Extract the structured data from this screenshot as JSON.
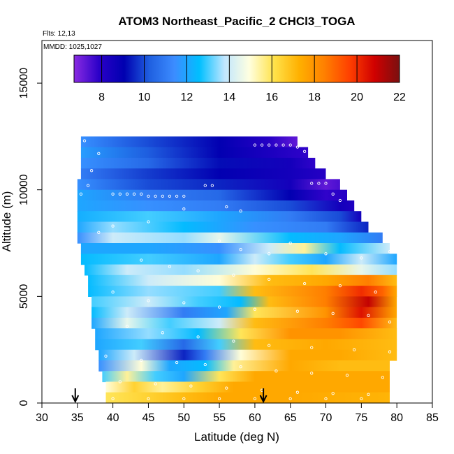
{
  "chart_data": {
    "type": "heatmap",
    "title": "ATOM3 Northeast_Pacific_2 CHCl3_TOGA",
    "notes": [
      "Flts: 12,13",
      "MMDD: 1025,1027"
    ],
    "xlabel": "Latitude (deg N)",
    "ylabel": "Altitude (m)",
    "xlim": [
      30,
      85
    ],
    "ylim": [
      0,
      17000
    ],
    "x_ticks": [
      30,
      35,
      40,
      45,
      50,
      55,
      60,
      65,
      70,
      75,
      80,
      85
    ],
    "y_ticks": [
      0,
      5000,
      10000,
      15000
    ],
    "colorbar": {
      "min": 6.7,
      "max": 22,
      "ticks": [
        8,
        10,
        12,
        14,
        16,
        18,
        20,
        22
      ],
      "colors": [
        "#8a2be2",
        "#2a00c8",
        "#0000b0",
        "#1f5fe0",
        "#3c8cff",
        "#00bfff",
        "#bfe6ff",
        "#ffffe0",
        "#ffe24a",
        "#ffb000",
        "#ff8000",
        "#ff4000",
        "#d00000",
        "#7a1010"
      ]
    },
    "arrows_at_latitude": [
      34.7,
      61.2
    ],
    "rows": [
      {
        "alt_bottom": 12000,
        "alt_top": 12500,
        "x_start": 35.5,
        "x_end": 66,
        "stops": [
          [
            35.5,
            11.5
          ],
          [
            45,
            10
          ],
          [
            55,
            9
          ],
          [
            62,
            8
          ],
          [
            66,
            7.2
          ]
        ]
      },
      {
        "alt_bottom": 11500,
        "alt_top": 12000,
        "x_start": 35.5,
        "x_end": 67.5,
        "stops": [
          [
            35.5,
            11.8
          ],
          [
            45,
            10.2
          ],
          [
            55,
            9
          ],
          [
            62,
            8.3
          ],
          [
            67.5,
            7.8
          ]
        ]
      },
      {
        "alt_bottom": 11000,
        "alt_top": 11500,
        "x_start": 35.5,
        "x_end": 68.5,
        "stops": [
          [
            35.5,
            11.5
          ],
          [
            45,
            10.5
          ],
          [
            55,
            9.2
          ],
          [
            65,
            8.5
          ],
          [
            68.5,
            7.8
          ]
        ]
      },
      {
        "alt_bottom": 10500,
        "alt_top": 11000,
        "x_start": 35.5,
        "x_end": 70,
        "stops": [
          [
            35.5,
            11
          ],
          [
            45,
            9.8
          ],
          [
            55,
            9
          ],
          [
            65,
            8.5
          ],
          [
            70,
            8
          ]
        ]
      },
      {
        "alt_bottom": 10000,
        "alt_top": 10500,
        "x_start": 35,
        "x_end": 72,
        "stops": [
          [
            35,
            11.5
          ],
          [
            45,
            10
          ],
          [
            55,
            9.5
          ],
          [
            65,
            8.5
          ],
          [
            70,
            7.2
          ],
          [
            72,
            7.5
          ]
        ]
      },
      {
        "alt_bottom": 9500,
        "alt_top": 10000,
        "x_start": 35,
        "x_end": 73,
        "stops": [
          [
            35,
            12
          ],
          [
            45,
            11
          ],
          [
            55,
            10.5
          ],
          [
            65,
            9
          ],
          [
            70,
            7.8
          ],
          [
            73,
            8
          ]
        ]
      },
      {
        "alt_bottom": 9000,
        "alt_top": 9500,
        "x_start": 35,
        "x_end": 74,
        "stops": [
          [
            35,
            12
          ],
          [
            45,
            11.5
          ],
          [
            55,
            11
          ],
          [
            65,
            10
          ],
          [
            72,
            8.5
          ],
          [
            74,
            8.2
          ]
        ]
      },
      {
        "alt_bottom": 8500,
        "alt_top": 9000,
        "x_start": 35,
        "x_end": 75,
        "stops": [
          [
            35,
            12.2
          ],
          [
            45,
            13
          ],
          [
            55,
            12
          ],
          [
            65,
            11
          ],
          [
            72,
            10
          ],
          [
            75,
            8.5
          ]
        ]
      },
      {
        "alt_bottom": 8000,
        "alt_top": 8500,
        "x_start": 35,
        "x_end": 76,
        "stops": [
          [
            35,
            12
          ],
          [
            40,
            13.5
          ],
          [
            50,
            12.5
          ],
          [
            60,
            11.5
          ],
          [
            70,
            11
          ],
          [
            76,
            9.5
          ]
        ]
      },
      {
        "alt_bottom": 7500,
        "alt_top": 8000,
        "x_start": 35,
        "x_end": 78,
        "stops": [
          [
            35,
            11.5
          ],
          [
            40,
            14
          ],
          [
            50,
            13.5
          ],
          [
            55,
            14.5
          ],
          [
            65,
            12.5
          ],
          [
            72,
            12
          ],
          [
            78,
            11
          ]
        ]
      },
      {
        "alt_bottom": 7000,
        "alt_top": 7500,
        "x_start": 35.5,
        "x_end": 79,
        "stops": [
          [
            35.5,
            12
          ],
          [
            45,
            12
          ],
          [
            55,
            11.5
          ],
          [
            62,
            14
          ],
          [
            67,
            15.5
          ],
          [
            72,
            12.5
          ],
          [
            79,
            14
          ]
        ]
      },
      {
        "alt_bottom": 6500,
        "alt_top": 7000,
        "x_start": 35.5,
        "x_end": 80,
        "stops": [
          [
            35.5,
            12.5
          ],
          [
            45,
            13
          ],
          [
            55,
            12
          ],
          [
            60,
            14
          ],
          [
            65,
            13
          ],
          [
            70,
            12
          ],
          [
            75,
            14
          ],
          [
            80,
            12
          ]
        ]
      },
      {
        "alt_bottom": 6000,
        "alt_top": 6500,
        "x_start": 36,
        "x_end": 80,
        "stops": [
          [
            36,
            12.5
          ],
          [
            42,
            14
          ],
          [
            50,
            13.5
          ],
          [
            60,
            15
          ],
          [
            68,
            16
          ],
          [
            75,
            14.5
          ],
          [
            80,
            13.5
          ]
        ]
      },
      {
        "alt_bottom": 5500,
        "alt_top": 6000,
        "x_start": 36.5,
        "x_end": 80,
        "stops": [
          [
            36.5,
            12.5
          ],
          [
            45,
            14
          ],
          [
            55,
            15
          ],
          [
            62,
            17
          ],
          [
            70,
            17.5
          ],
          [
            76,
            18.5
          ],
          [
            80,
            17
          ]
        ]
      },
      {
        "alt_bottom": 5000,
        "alt_top": 5500,
        "x_start": 36.5,
        "x_end": 80,
        "stops": [
          [
            36.5,
            12.5
          ],
          [
            45,
            13.5
          ],
          [
            55,
            13
          ],
          [
            60,
            17
          ],
          [
            70,
            18.5
          ],
          [
            75,
            20
          ],
          [
            78,
            19
          ],
          [
            80,
            17.5
          ]
        ]
      },
      {
        "alt_bottom": 4500,
        "alt_top": 5000,
        "x_start": 37,
        "x_end": 80,
        "stops": [
          [
            37,
            13
          ],
          [
            45,
            14
          ],
          [
            52,
            13
          ],
          [
            58,
            12.5
          ],
          [
            62,
            17
          ],
          [
            70,
            18.5
          ],
          [
            76,
            21
          ],
          [
            80,
            17.5
          ]
        ]
      },
      {
        "alt_bottom": 4000,
        "alt_top": 4500,
        "x_start": 37,
        "x_end": 80,
        "stops": [
          [
            37,
            12.5
          ],
          [
            42,
            14
          ],
          [
            50,
            11
          ],
          [
            56,
            12
          ],
          [
            60,
            16
          ],
          [
            70,
            18
          ],
          [
            75,
            20.5
          ],
          [
            80,
            17.5
          ]
        ]
      },
      {
        "alt_bottom": 3500,
        "alt_top": 4000,
        "x_start": 37,
        "x_end": 80,
        "stops": [
          [
            37,
            12
          ],
          [
            42,
            14.5
          ],
          [
            48,
            13
          ],
          [
            55,
            14
          ],
          [
            60,
            17
          ],
          [
            70,
            18.5
          ],
          [
            75,
            19.5
          ],
          [
            80,
            17
          ]
        ]
      },
      {
        "alt_bottom": 3000,
        "alt_top": 3500,
        "x_start": 37.5,
        "x_end": 80,
        "stops": [
          [
            37.5,
            12
          ],
          [
            45,
            13.5
          ],
          [
            52,
            12.5
          ],
          [
            58,
            16
          ],
          [
            65,
            18
          ],
          [
            72,
            18
          ],
          [
            80,
            17
          ]
        ]
      },
      {
        "alt_bottom": 2500,
        "alt_top": 3000,
        "x_start": 37.5,
        "x_end": 80,
        "stops": [
          [
            37.5,
            12
          ],
          [
            44,
            13
          ],
          [
            50,
            10.5
          ],
          [
            55,
            13
          ],
          [
            60,
            17
          ],
          [
            70,
            17.5
          ],
          [
            80,
            17
          ]
        ]
      },
      {
        "alt_bottom": 2000,
        "alt_top": 2500,
        "x_start": 38,
        "x_end": 80,
        "stops": [
          [
            38,
            12
          ],
          [
            43,
            14
          ],
          [
            50,
            9.5
          ],
          [
            53,
            11
          ],
          [
            58,
            15
          ],
          [
            65,
            17.5
          ],
          [
            72,
            17.5
          ],
          [
            80,
            17
          ]
        ]
      },
      {
        "alt_bottom": 1500,
        "alt_top": 2000,
        "x_start": 38,
        "x_end": 79,
        "stops": [
          [
            38,
            11.5
          ],
          [
            44,
            15
          ],
          [
            48,
            12
          ],
          [
            53,
            12.5
          ],
          [
            57,
            15.5
          ],
          [
            65,
            17.5
          ],
          [
            72,
            17
          ],
          [
            79,
            17
          ]
        ]
      },
      {
        "alt_bottom": 1000,
        "alt_top": 1500,
        "x_start": 38.5,
        "x_end": 79,
        "stops": [
          [
            38.5,
            13
          ],
          [
            42,
            15.5
          ],
          [
            46,
            13
          ],
          [
            50,
            12
          ],
          [
            55,
            16
          ],
          [
            60,
            17.5
          ],
          [
            70,
            17.5
          ],
          [
            79,
            17.5
          ]
        ]
      },
      {
        "alt_bottom": 500,
        "alt_top": 1000,
        "x_start": 39,
        "x_end": 79,
        "stops": [
          [
            39,
            15
          ],
          [
            43,
            16.5
          ],
          [
            47,
            15.5
          ],
          [
            52,
            16.5
          ],
          [
            57,
            17.5
          ],
          [
            65,
            17.5
          ],
          [
            72,
            17.5
          ],
          [
            79,
            17.5
          ]
        ]
      },
      {
        "alt_bottom": 0,
        "alt_top": 500,
        "x_start": 39,
        "x_end": 79,
        "stops": [
          [
            39,
            16
          ],
          [
            45,
            16.5
          ],
          [
            50,
            17
          ],
          [
            55,
            17.5
          ],
          [
            65,
            17.5
          ],
          [
            79,
            17.2
          ]
        ]
      }
    ],
    "points": [
      [
        36,
        12300
      ],
      [
        38,
        11700
      ],
      [
        37,
        10900
      ],
      [
        36.5,
        10200
      ],
      [
        35.5,
        9800
      ],
      [
        40,
        9800
      ],
      [
        41,
        9800
      ],
      [
        42,
        9800
      ],
      [
        43,
        9800
      ],
      [
        44,
        9800
      ],
      [
        45,
        9700
      ],
      [
        46,
        9700
      ],
      [
        47,
        9700
      ],
      [
        48,
        9700
      ],
      [
        49,
        9700
      ],
      [
        50,
        9700
      ],
      [
        53,
        10200
      ],
      [
        54,
        10200
      ],
      [
        60,
        12100
      ],
      [
        61,
        12100
      ],
      [
        62,
        12100
      ],
      [
        63,
        12100
      ],
      [
        64,
        12100
      ],
      [
        65,
        12100
      ],
      [
        66,
        12000
      ],
      [
        67,
        11800
      ],
      [
        68,
        10300
      ],
      [
        69,
        10300
      ],
      [
        70,
        10300
      ],
      [
        71,
        9800
      ],
      [
        72,
        9500
      ],
      [
        58,
        9000
      ],
      [
        56,
        9200
      ],
      [
        50,
        9100
      ],
      [
        45,
        8500
      ],
      [
        40,
        8300
      ],
      [
        38,
        8000
      ],
      [
        55,
        7600
      ],
      [
        58,
        7200
      ],
      [
        62,
        7000
      ],
      [
        65,
        7500
      ],
      [
        70,
        7000
      ],
      [
        75,
        6800
      ],
      [
        79,
        7100
      ],
      [
        44,
        6700
      ],
      [
        48,
        6400
      ],
      [
        52,
        6200
      ],
      [
        57,
        6000
      ],
      [
        62,
        5800
      ],
      [
        67,
        5600
      ],
      [
        72,
        5500
      ],
      [
        77,
        5200
      ],
      [
        40,
        5200
      ],
      [
        45,
        4800
      ],
      [
        50,
        4700
      ],
      [
        55,
        4500
      ],
      [
        60,
        4400
      ],
      [
        66,
        4300
      ],
      [
        71,
        4200
      ],
      [
        76,
        4100
      ],
      [
        79,
        3800
      ],
      [
        42,
        3600
      ],
      [
        47,
        3300
      ],
      [
        52,
        3100
      ],
      [
        57,
        2900
      ],
      [
        62,
        2700
      ],
      [
        68,
        2600
      ],
      [
        74,
        2500
      ],
      [
        79,
        2400
      ],
      [
        39,
        2200
      ],
      [
        44,
        2000
      ],
      [
        49,
        1900
      ],
      [
        53,
        1800
      ],
      [
        58,
        1700
      ],
      [
        63,
        1500
      ],
      [
        68,
        1400
      ],
      [
        73,
        1300
      ],
      [
        78,
        1200
      ],
      [
        41,
        1000
      ],
      [
        46,
        900
      ],
      [
        51,
        800
      ],
      [
        56,
        700
      ],
      [
        61,
        600
      ],
      [
        66,
        500
      ],
      [
        71,
        450
      ],
      [
        76,
        400
      ],
      [
        40,
        200
      ],
      [
        45,
        200
      ],
      [
        50,
        200
      ],
      [
        55,
        200
      ],
      [
        60,
        200
      ],
      [
        65,
        200
      ],
      [
        70,
        200
      ],
      [
        75,
        200
      ]
    ]
  }
}
